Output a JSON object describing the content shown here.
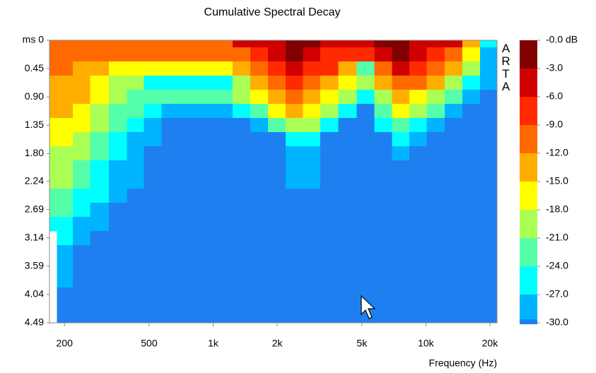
{
  "chart_data": {
    "type": "heatmap",
    "title": "Cumulative Spectral Decay",
    "x_label": "Frequency (Hz)",
    "annotation": "ARTA",
    "log_x": true,
    "xlim": [
      170,
      21600
    ],
    "ylim": [
      0,
      4.49
    ],
    "y_inverted": true,
    "xticks": [
      200,
      500,
      {
        "value": 1000,
        "label": "1k"
      },
      {
        "value": 2000,
        "label": "2k"
      },
      {
        "value": 5000,
        "label": "5k"
      },
      {
        "value": 10000,
        "label": "10k"
      },
      {
        "value": 20000,
        "label": "20k"
      }
    ],
    "yticks": [
      {
        "value": 0,
        "label": "ms 0"
      },
      0.45,
      {
        "value": 0.9,
        "label": "0.90"
      },
      1.35,
      {
        "value": 1.8,
        "label": "1.80"
      },
      2.24,
      2.69,
      3.14,
      3.59,
      4.04,
      4.49
    ],
    "colorbar": {
      "ticks": [
        {
          "value": 0,
          "label": "-0.0 dB"
        },
        {
          "value": -3,
          "label": "-3.0"
        },
        {
          "value": -6,
          "label": "-6.0"
        },
        {
          "value": -9,
          "label": "-9.0"
        },
        {
          "value": -12,
          "label": "-12.0"
        },
        {
          "value": -15,
          "label": "-15.0"
        },
        {
          "value": -18,
          "label": "-18.0"
        },
        {
          "value": -21,
          "label": "-21.0"
        },
        {
          "value": -24,
          "label": "-24.0"
        },
        {
          "value": -27,
          "label": "-27.0"
        },
        {
          "value": -30,
          "label": "-30.0"
        }
      ],
      "colors": [
        "#800000",
        "#d00000",
        "#ff2a00",
        "#ff6a00",
        "#ffae00",
        "#ffff00",
        "#aaff55",
        "#55ffaa",
        "#00ffff",
        "#00b4ff",
        "#1e80f0"
      ]
    },
    "x": [
      170,
      200,
      240,
      290,
      360,
      430,
      520,
      630,
      760,
      930,
      1120,
      1360,
      1640,
      2000,
      2400,
      2900,
      3500,
      4300,
      5200,
      6300,
      7600,
      9200,
      11100,
      13500,
      16300,
      19800
    ],
    "y": [
      0,
      0.22,
      0.45,
      0.67,
      0.9,
      1.12,
      1.35,
      1.57,
      1.8,
      2.02,
      2.24,
      2.47,
      2.69,
      2.92,
      3.14,
      3.37,
      3.59,
      3.82,
      4.04,
      4.27,
      4.49
    ],
    "z": [
      [
        -10,
        -10,
        -10,
        -10,
        -10,
        -10,
        -10,
        -10,
        -10,
        -10,
        -10,
        -5,
        -5,
        -4,
        -1,
        -2,
        -5,
        -4,
        -4,
        -2,
        -1,
        -4,
        -4,
        -5,
        -12,
        -26
      ],
      [
        -11,
        -11,
        -11,
        -11,
        -11,
        -11,
        -11,
        -11,
        -11,
        -11,
        -11,
        -10,
        -7,
        -5,
        -2,
        -3,
        -6,
        -7,
        -6,
        -4,
        -2,
        -5,
        -6,
        -9,
        -15,
        -27
      ],
      [
        -10,
        -11,
        -12,
        -14,
        -16,
        -17,
        -17,
        -17,
        -17,
        -16,
        -16,
        -14,
        -10,
        -7,
        -5,
        -6,
        -8,
        -12,
        -22,
        -9,
        -5,
        -7,
        -10,
        -13,
        -18,
        -28
      ],
      [
        -12,
        -12,
        -13,
        -15,
        -18,
        -20,
        -25,
        -26,
        -26,
        -25,
        -24,
        -19,
        -14,
        -10,
        -8,
        -9,
        -12,
        -17,
        -20,
        -13,
        -9,
        -11,
        -14,
        -18,
        -24,
        -29
      ],
      [
        -13,
        -13,
        -14,
        -16,
        -19,
        -21,
        -21,
        -22,
        -22,
        -22,
        -21,
        -20,
        -17,
        -13,
        -11,
        -12,
        -16,
        -20,
        -24,
        -18,
        -13,
        -15,
        -18,
        -22,
        -27,
        -31
      ],
      [
        -14,
        -14,
        -16,
        -18,
        -21,
        -23,
        -25,
        -28,
        -29,
        -29,
        -28,
        -25,
        -22,
        -17,
        -14,
        -15,
        -20,
        -25,
        -31,
        -22,
        -17,
        -19,
        -23,
        -27,
        -31,
        -33
      ],
      [
        -15,
        -15,
        -17,
        -19,
        -23,
        -26,
        -28,
        -31,
        -32,
        -32,
        -32,
        -31,
        -28,
        -23,
        -19,
        -20,
        -25,
        -31,
        -33,
        -26,
        -22,
        -24,
        -29,
        -32,
        -33,
        -34
      ],
      [
        -17,
        -17,
        -18,
        -21,
        -25,
        -28,
        -29,
        -33,
        -33,
        -33,
        -33,
        -33,
        -33,
        -30,
        -25,
        -26,
        -31,
        -33,
        -33,
        -30,
        -26,
        -28,
        -33,
        -33,
        -33,
        -34
      ],
      [
        -18,
        -18,
        -20,
        -22,
        -26,
        -28,
        -31,
        -33,
        -33,
        -33,
        -33,
        -33,
        -33,
        -33,
        -27,
        -27,
        -33,
        -33,
        -33,
        -33,
        -29,
        -31,
        -33,
        -33,
        -33,
        -34
      ],
      [
        -19,
        -19,
        -21,
        -24,
        -27,
        -29,
        -32,
        -33,
        -33,
        -33,
        -33,
        -33,
        -33,
        -33,
        -28,
        -28,
        -33,
        -33,
        -33,
        -33,
        -33,
        -33,
        -33,
        -33,
        -33,
        -34
      ],
      [
        -20,
        -20,
        -23,
        -25,
        -28,
        -29,
        -33,
        -33,
        -33,
        -33,
        -33,
        -33,
        -33,
        -33,
        -29,
        -29,
        -33,
        -33,
        -33,
        -33,
        -33,
        -33,
        -33,
        -33,
        -33,
        -34
      ],
      [
        -22,
        -22,
        -24,
        -26,
        -29,
        -33,
        -33,
        -33,
        -33,
        -33,
        -33,
        -33,
        -33,
        -33,
        -31,
        -33,
        -33,
        -33,
        -33,
        -33,
        -33,
        -33,
        -33,
        -33,
        -33,
        -34
      ],
      [
        -23,
        -23,
        -25,
        -27,
        -31,
        -33,
        -33,
        -33,
        -33,
        -33,
        -33,
        -33,
        -33,
        -33,
        -33,
        -33,
        -33,
        -33,
        -33,
        -33,
        -33,
        -33,
        -33,
        -33,
        -33,
        -34
      ],
      [
        -24,
        -24,
        -27,
        -29,
        -33,
        -33,
        -33,
        -33,
        -33,
        -33,
        -33,
        -33,
        -33,
        -33,
        -33,
        -33,
        -33,
        -33,
        -33,
        -33,
        -33,
        -33,
        -33,
        -33,
        -33,
        -34
      ],
      [
        null,
        -25,
        -28,
        -31,
        -33,
        -33,
        -33,
        -33,
        -33,
        -33,
        -33,
        -33,
        -33,
        -33,
        -33,
        -33,
        -33,
        -33,
        -33,
        -33,
        -33,
        -33,
        -33,
        -33,
        -33,
        -34
      ],
      [
        null,
        -27,
        -30,
        -33,
        -33,
        -33,
        -33,
        -33,
        -33,
        -33,
        -33,
        -33,
        -33,
        -33,
        -33,
        -33,
        -33,
        -33,
        -33,
        -33,
        -33,
        -33,
        -33,
        -33,
        -33,
        -34
      ],
      [
        null,
        -28,
        -31,
        -33,
        -33,
        -33,
        -33,
        -33,
        -33,
        -33,
        -33,
        -33,
        -33,
        -33,
        -33,
        -33,
        -33,
        -33,
        -33,
        -33,
        -33,
        -33,
        -33,
        -33,
        -33,
        -34
      ],
      [
        null,
        -29,
        -33,
        -33,
        -33,
        -33,
        -33,
        -33,
        -33,
        -33,
        -33,
        -33,
        -33,
        -33,
        -33,
        -33,
        -33,
        -33,
        -33,
        -33,
        -33,
        -33,
        -33,
        -33,
        -33,
        -34
      ],
      [
        null,
        -31,
        -33,
        -33,
        -33,
        -33,
        -33,
        -33,
        -33,
        -33,
        -33,
        -33,
        -33,
        -33,
        -33,
        -33,
        -33,
        -33,
        -33,
        -33,
        -33,
        -33,
        -33,
        -33,
        -33,
        -34
      ],
      [
        null,
        -33,
        -33,
        -33,
        -33,
        -33,
        -33,
        -33,
        -33,
        -33,
        -33,
        -33,
        -33,
        -33,
        -33,
        -33,
        -33,
        -33,
        -33,
        -33,
        -33,
        -33,
        -33,
        -33,
        -33,
        -34
      ],
      [
        null,
        -33,
        -33,
        -33,
        -33,
        -33,
        -33,
        -33,
        -33,
        -33,
        -33,
        -33,
        -33,
        -33,
        -33,
        -33,
        -33,
        -33,
        -33,
        -33,
        -33,
        -33,
        -33,
        -33,
        -33,
        -34
      ]
    ]
  }
}
